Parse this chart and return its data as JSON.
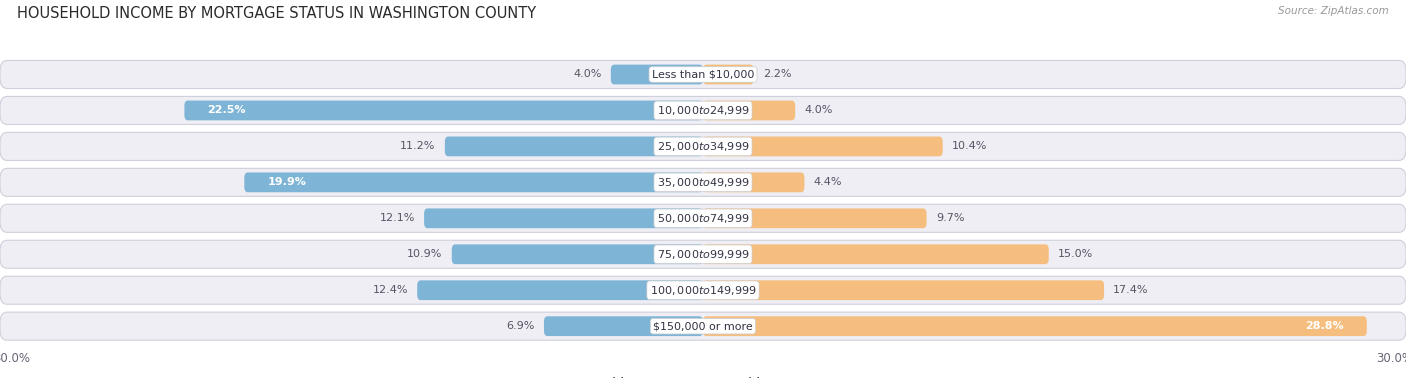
{
  "title": "HOUSEHOLD INCOME BY MORTGAGE STATUS IN WASHINGTON COUNTY",
  "source": "Source: ZipAtlas.com",
  "categories": [
    "Less than $10,000",
    "$10,000 to $24,999",
    "$25,000 to $34,999",
    "$35,000 to $49,999",
    "$50,000 to $74,999",
    "$75,000 to $99,999",
    "$100,000 to $149,999",
    "$150,000 or more"
  ],
  "without_mortgage": [
    4.0,
    22.5,
    11.2,
    19.9,
    12.1,
    10.9,
    12.4,
    6.9
  ],
  "with_mortgage": [
    2.2,
    4.0,
    10.4,
    4.4,
    9.7,
    15.0,
    17.4,
    28.8
  ],
  "xlim": 30.0,
  "color_without": "#7eb5d6",
  "color_with": "#f5be7e",
  "bg_color": "#ffffff",
  "row_bg_even": "#ededf3",
  "row_bg_odd": "#ededf3",
  "title_color": "#2b2b2b",
  "source_color": "#999999",
  "label_fontsize": 8.0,
  "title_fontsize": 10.5,
  "axis_fontsize": 8.5,
  "cat_label_fontsize": 8.0
}
